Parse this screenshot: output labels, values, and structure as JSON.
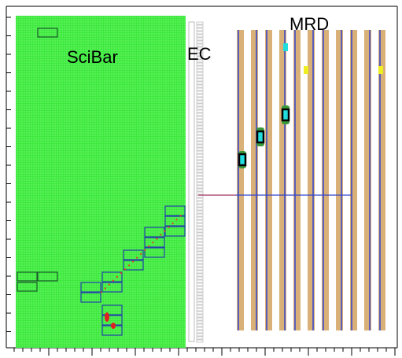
{
  "labels": {
    "scibar": "SciBar",
    "ec": "EC",
    "mrd": "MRD"
  }
}
